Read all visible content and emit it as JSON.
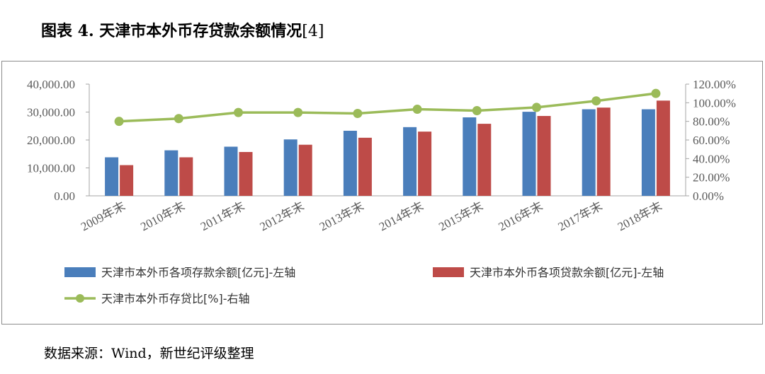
{
  "header": {
    "title": "图表 4.  天津市本外币存贷款余额情况",
    "ref": "[4]"
  },
  "source": "数据来源：Wind，新世纪评级整理",
  "colors": {
    "deposits": "#4a7ebb",
    "loans": "#be4b48",
    "ratio": "#9bbb59",
    "axis": "#a6a6a6",
    "frame": "#8c8c8c"
  },
  "chart_data": {
    "type": "bar",
    "categories": [
      "2009年末",
      "2010年末",
      "2011年末",
      "2012年末",
      "2013年末",
      "2014年末",
      "2015年末",
      "2016年末",
      "2017年末",
      "2018年末"
    ],
    "series": [
      {
        "name": "天津市本外币各项存款余额[亿元]-左轴",
        "kind": "bar",
        "axis": "left",
        "values": [
          13800,
          16300,
          17600,
          20200,
          23300,
          24600,
          28100,
          30100,
          31000,
          31000
        ]
      },
      {
        "name": "天津市本外币各项贷款余额[亿元]-左轴",
        "kind": "bar",
        "axis": "left",
        "values": [
          11000,
          13800,
          15700,
          18300,
          20800,
          23000,
          25800,
          28600,
          31600,
          34100
        ]
      },
      {
        "name": "天津市本外币存贷比[%]-右轴",
        "kind": "line",
        "axis": "right",
        "values": [
          80.0,
          83.0,
          89.5,
          89.5,
          88.5,
          93.0,
          91.5,
          95.0,
          102.0,
          110.0
        ]
      }
    ],
    "left_axis": {
      "ylim": [
        0,
        40000
      ],
      "ticks": [
        "0.00",
        "10,000.00",
        "20,000.00",
        "30,000.00",
        "40,000.00"
      ]
    },
    "right_axis": {
      "ylim": [
        0,
        120
      ],
      "ticks": [
        "0.00%",
        "20.00%",
        "40.00%",
        "60.00%",
        "80.00%",
        "100.00%",
        "120.00%"
      ]
    },
    "legend_position": "bottom",
    "grid": false
  }
}
